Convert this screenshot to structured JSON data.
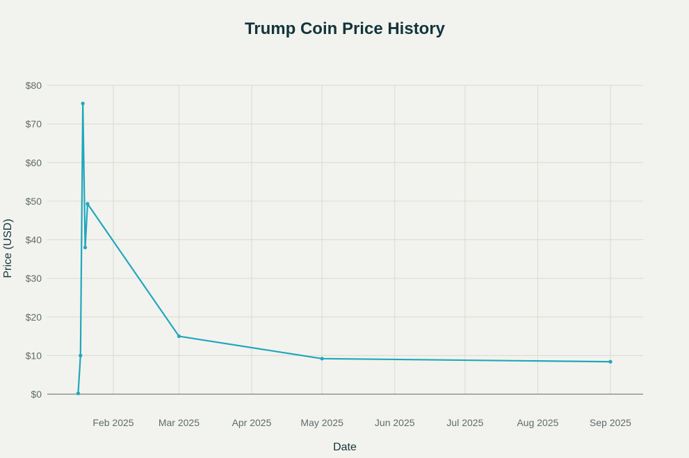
{
  "chart_data": {
    "type": "line",
    "title": "Trump Coin Price History",
    "xlabel": "Date",
    "ylabel": "Price (USD)",
    "ylim": [
      0,
      80
    ],
    "xlim": [
      "2025-01-01",
      "2025-09-15"
    ],
    "y_ticks": [
      {
        "value": 0,
        "label": "$0"
      },
      {
        "value": 10,
        "label": "$10"
      },
      {
        "value": 20,
        "label": "$20"
      },
      {
        "value": 30,
        "label": "$30"
      },
      {
        "value": 40,
        "label": "$40"
      },
      {
        "value": 50,
        "label": "$50"
      },
      {
        "value": 60,
        "label": "$60"
      },
      {
        "value": 70,
        "label": "$70"
      },
      {
        "value": 80,
        "label": "$80"
      }
    ],
    "x_ticks": [
      {
        "date": "2025-02-01",
        "label": "Feb 2025"
      },
      {
        "date": "2025-03-01",
        "label": "Mar 2025"
      },
      {
        "date": "2025-04-01",
        "label": "Apr 2025"
      },
      {
        "date": "2025-05-01",
        "label": "May 2025"
      },
      {
        "date": "2025-06-01",
        "label": "Jun 2025"
      },
      {
        "date": "2025-07-01",
        "label": "Jul 2025"
      },
      {
        "date": "2025-08-01",
        "label": "Aug 2025"
      },
      {
        "date": "2025-09-01",
        "label": "Sep 2025"
      }
    ],
    "grid": true,
    "series": [
      {
        "name": "Trump Coin",
        "color": "#21a6bc",
        "points": [
          {
            "date": "2025-01-17",
            "value": 0.2
          },
          {
            "date": "2025-01-18",
            "value": 10
          },
          {
            "date": "2025-01-19",
            "value": 75.3
          },
          {
            "date": "2025-01-20",
            "value": 38
          },
          {
            "date": "2025-01-21",
            "value": 49.3
          },
          {
            "date": "2025-03-01",
            "value": 15
          },
          {
            "date": "2025-05-01",
            "value": 9.2
          },
          {
            "date": "2025-09-01",
            "value": 8.4
          }
        ]
      }
    ]
  }
}
